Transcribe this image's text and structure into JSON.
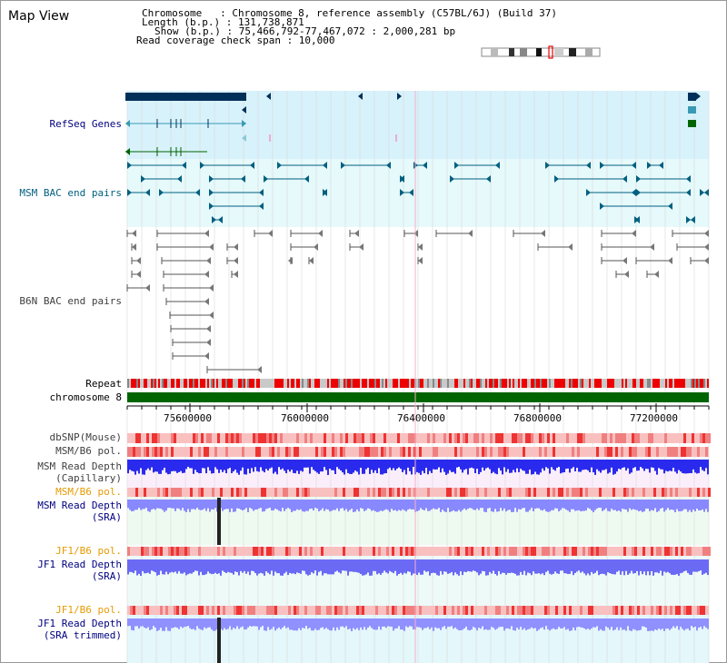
{
  "view_title": "Map View",
  "chromosome_info": {
    "line1": "Chromosome   : Chromosome 8, reference assembly (C57BL/6J) (Build 37)",
    "line2": "Length (b.p.) : 131,738,871",
    "line3": "Show (b.p.) : 75,466,792-77,467,072 : 2,000,281 bp",
    "line4": "Read coverage check span : 10,000"
  },
  "tracks": {
    "refseq": "RefSeq Genes",
    "msm_bac": "MSM BAC end pairs",
    "b6n_bac": "B6N BAC end pairs",
    "repeat": "Repeat",
    "chromosome": "chromosome 8",
    "dbsnp": "dbSNP(Mouse)",
    "msm_b6_pol": "MSM/B6 pol.",
    "msm_depth_cap_1": "MSM Read Depth",
    "msm_depth_cap_2": "(Capillary)",
    "msm_b6_pol_2": "MSM/B6 pol.",
    "msm_depth_sra_1": "MSM Read Depth",
    "msm_depth_sra_2": "(SRA)",
    "jf1_pol_1": "JF1/B6 pol.",
    "jf1_depth_sra_1": "JF1 Read Depth",
    "jf1_depth_sra_2": "(SRA)",
    "jf1_pol_2": "JF1/B6 pol.",
    "jf1_depth_trim_1": "JF1 Read Depth",
    "jf1_depth_trim_2": "(SRA trimmed)"
  },
  "axis_ticks": [
    "75600000",
    "76000000",
    "76400000",
    "76800000",
    "77200000"
  ],
  "colors": {
    "refseq_bg": "#d8f2fb",
    "bac_bg": "#e6f9fb",
    "chromosome": "#006400",
    "depth_fill": "#3333ff",
    "sra_fill": "#8888ff",
    "pol_light": "#f9c0c0",
    "pol_dark": "#e33"
  }
}
